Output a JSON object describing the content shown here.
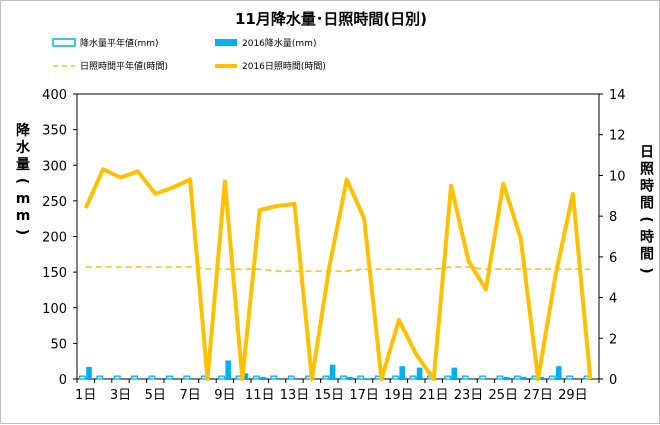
{
  "chart_data": {
    "type": "bar+line",
    "title": "11月降水量･日照時間(日別)",
    "legend": {
      "placement": "top",
      "items": [
        {
          "key": "rain_normal",
          "label": "降水量平年値(mm)",
          "style": "bar-outline",
          "color": "#00b0f0"
        },
        {
          "key": "rain_2016",
          "label": "2016降水量(mm)",
          "style": "bar-filled",
          "color": "#00b0f0"
        },
        {
          "key": "sun_normal",
          "label": "日照時間平年値(時間)",
          "style": "line-dashed",
          "color": "#f0c020"
        },
        {
          "key": "sun_2016",
          "label": "2016日照時間(時間)",
          "style": "line-solid",
          "color": "#ffc000"
        }
      ]
    },
    "days": [
      1,
      2,
      3,
      4,
      5,
      6,
      7,
      8,
      9,
      10,
      11,
      12,
      13,
      14,
      15,
      16,
      17,
      18,
      19,
      20,
      21,
      22,
      23,
      24,
      25,
      26,
      27,
      28,
      29,
      30
    ],
    "x_tick_labels": [
      "1日",
      "3日",
      "5日",
      "7日",
      "9日",
      "11日",
      "13日",
      "15日",
      "17日",
      "19日",
      "21日",
      "23日",
      "25日",
      "27日",
      "29日"
    ],
    "left_axis": {
      "label": "降水量(mm)",
      "min": 0,
      "max": 400,
      "step": 50,
      "ticks": [
        "0",
        "50",
        "100",
        "150",
        "200",
        "250",
        "300",
        "350",
        "400"
      ]
    },
    "right_axis": {
      "label": "日照時間(時間)",
      "min": 0,
      "max": 14,
      "step": 2,
      "ticks": [
        "0",
        "2",
        "4",
        "6",
        "8",
        "10",
        "12",
        "14"
      ]
    },
    "series": {
      "rain_normal": [
        4,
        4,
        4,
        4,
        4,
        4,
        4,
        4,
        4,
        4,
        4,
        4,
        4,
        4,
        4,
        4,
        4,
        4,
        4,
        4,
        4,
        4,
        4,
        4,
        4,
        4,
        4,
        4,
        4,
        4
      ],
      "rain_2016": [
        17,
        0,
        0,
        0,
        0,
        0,
        0,
        0,
        26,
        8,
        3,
        0,
        0,
        0,
        20,
        3,
        1,
        0,
        18,
        16,
        0,
        16,
        0,
        0,
        3,
        3,
        3,
        18,
        0,
        0
      ],
      "sun_normal": [
        5.5,
        5.5,
        5.5,
        5.5,
        5.5,
        5.5,
        5.5,
        5.4,
        5.4,
        5.4,
        5.4,
        5.3,
        5.3,
        5.3,
        5.3,
        5.3,
        5.4,
        5.4,
        5.4,
        5.4,
        5.4,
        5.5,
        5.5,
        5.4,
        5.4,
        5.4,
        5.4,
        5.4,
        5.4,
        5.4
      ],
      "sun_2016": [
        8.4,
        10.3,
        9.9,
        10.2,
        9.1,
        9.4,
        9.8,
        0,
        9.7,
        0,
        8.3,
        8.5,
        8.6,
        0,
        5.5,
        9.8,
        7.9,
        0,
        2.9,
        1.2,
        0,
        9.5,
        5.8,
        4.4,
        9.6,
        6.9,
        0,
        5.1,
        9.1,
        0
      ]
    }
  }
}
